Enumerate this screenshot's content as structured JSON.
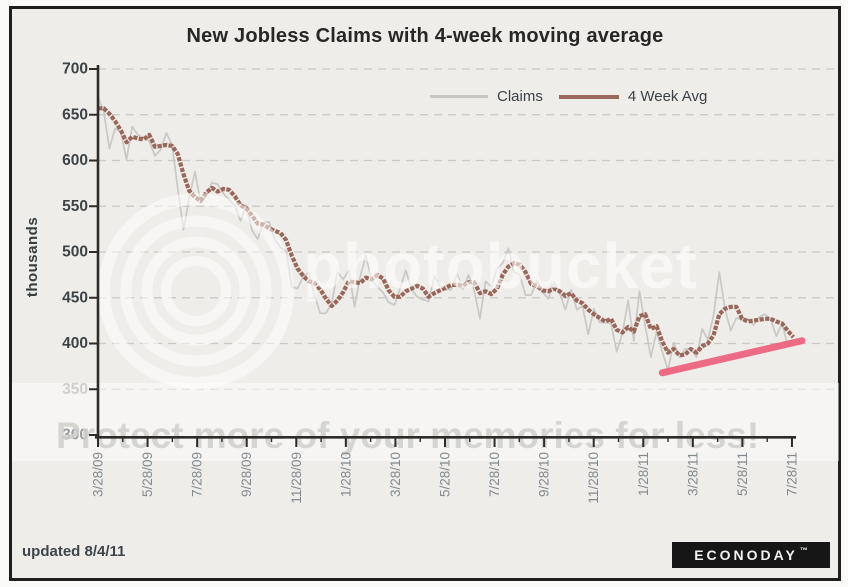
{
  "title": "New Jobless Claims with 4-week moving average",
  "y_axis_label": "thousands",
  "legend": {
    "items": [
      {
        "label": "Claims",
        "color": "#c7c6c4"
      },
      {
        "label": "4 Week Avg",
        "color": "#9a685a"
      }
    ]
  },
  "footer": {
    "updated": "updated 8/4/11",
    "logo_text": "ECONODAY",
    "logo_tm": "™"
  },
  "watermark": {
    "brand": "photobucket",
    "promo": "Protect more of your memories for less!"
  },
  "chart_data": {
    "type": "line",
    "title": "New Jobless Claims with 4-week moving average",
    "xlabel": "",
    "ylabel": "thousands",
    "ylim": [
      300,
      700
    ],
    "y_ticks": [
      700,
      650,
      600,
      550,
      500,
      450,
      400,
      350,
      300
    ],
    "grid": "dashed-horizontal",
    "legend_position": "top-right",
    "x_tick_labels": [
      "3/28/09",
      "5/28/09",
      "7/28/09",
      "9/28/09",
      "11/28/09",
      "1/28/10",
      "3/28/10",
      "5/28/10",
      "7/28/10",
      "9/28/10",
      "11/28/10",
      "1/28/11",
      "3/28/11",
      "5/28/11",
      "7/28/11"
    ],
    "dates": [
      "3/28/09",
      "4/4/09",
      "4/11/09",
      "4/18/09",
      "4/25/09",
      "5/2/09",
      "5/9/09",
      "5/16/09",
      "5/23/09",
      "5/30/09",
      "6/6/09",
      "6/13/09",
      "6/20/09",
      "6/27/09",
      "7/4/09",
      "7/11/09",
      "7/18/09",
      "7/25/09",
      "8/1/09",
      "8/8/09",
      "8/15/09",
      "8/22/09",
      "8/29/09",
      "9/5/09",
      "9/12/09",
      "9/19/09",
      "9/26/09",
      "10/3/09",
      "10/10/09",
      "10/17/09",
      "10/24/09",
      "10/31/09",
      "11/7/09",
      "11/14/09",
      "11/21/09",
      "11/28/09",
      "12/5/09",
      "12/12/09",
      "12/19/09",
      "12/26/09",
      "1/2/10",
      "1/9/10",
      "1/16/10",
      "1/23/10",
      "1/30/10",
      "2/6/10",
      "2/13/10",
      "2/20/10",
      "2/27/10",
      "3/6/10",
      "3/13/10",
      "3/20/10",
      "3/27/10",
      "4/3/10",
      "4/10/10",
      "4/17/10",
      "4/24/10",
      "5/1/10",
      "5/8/10",
      "5/15/10",
      "5/22/10",
      "5/29/10",
      "6/5/10",
      "6/12/10",
      "6/19/10",
      "6/26/10",
      "7/3/10",
      "7/10/10",
      "7/17/10",
      "7/24/10",
      "7/31/10",
      "8/7/10",
      "8/14/10",
      "8/21/10",
      "8/28/10",
      "9/4/10",
      "9/11/10",
      "9/18/10",
      "9/25/10",
      "10/2/10",
      "10/9/10",
      "10/16/10",
      "10/23/10",
      "10/30/10",
      "11/6/10",
      "11/13/10",
      "11/20/10",
      "11/27/10",
      "12/4/10",
      "12/11/10",
      "12/18/10",
      "12/25/10",
      "1/1/11",
      "1/8/11",
      "1/15/11",
      "1/22/11",
      "1/29/11",
      "2/5/11",
      "2/12/11",
      "2/19/11",
      "2/26/11",
      "3/5/11",
      "3/12/11",
      "3/19/11",
      "3/26/11",
      "4/2/11",
      "4/9/11",
      "4/16/11",
      "4/23/11",
      "4/30/11",
      "5/7/11",
      "5/14/11",
      "5/21/11",
      "5/28/11",
      "6/4/11",
      "6/11/11",
      "6/18/11",
      "6/25/11",
      "7/2/11",
      "7/9/11",
      "7/16/11",
      "7/23/11",
      "7/30/11"
    ],
    "series": [
      {
        "name": "Claims",
        "color": "#c7c6c4",
        "values": [
          669,
          654,
          613,
          635,
          631,
          601,
          637,
          628,
          625,
          621,
          605,
          612,
          630,
          617,
          569,
          524,
          559,
          588,
          554,
          561,
          576,
          574,
          564,
          557,
          551,
          534,
          551,
          524,
          514,
          532,
          533,
          514,
          505,
          501,
          462,
          460,
          473,
          478,
          452,
          433,
          433,
          444,
          478,
          470,
          480,
          440,
          473,
          496,
          469,
          462,
          456,
          445,
          442,
          460,
          480,
          459,
          451,
          448,
          446,
          474,
          463,
          459,
          459,
          476,
          459,
          475,
          458,
          427,
          468,
          462,
          482,
          488,
          504,
          478,
          475,
          453,
          453,
          469,
          456,
          449,
          467,
          455,
          437,
          459,
          437,
          441,
          410,
          438,
          423,
          423,
          422,
          391,
          411,
          447,
          403,
          457,
          419,
          385,
          413,
          391,
          371,
          401,
          385,
          394,
          394,
          385,
          416,
          404,
          431,
          478,
          438,
          414,
          428,
          426,
          427,
          420,
          429,
          432,
          427,
          408,
          422,
          398,
          400
        ]
      },
      {
        "name": "4 Week Avg",
        "color": "#9a685a",
        "values": [
          657,
          657,
          651,
          643,
          633,
          620,
          626,
          624,
          623,
          628,
          615,
          616,
          617,
          616,
          607,
          585,
          567,
          560,
          556,
          565,
          570,
          566,
          569,
          568,
          561,
          551,
          548,
          540,
          531,
          530,
          526,
          523,
          521,
          513,
          496,
          482,
          474,
          468,
          466,
          459,
          449,
          441,
          447,
          456,
          468,
          467,
          466,
          472,
          470,
          475,
          471,
          458,
          451,
          451,
          457,
          460,
          463,
          460,
          451,
          455,
          458,
          461,
          464,
          464,
          463,
          467,
          467,
          455,
          457,
          454,
          460,
          475,
          484,
          488,
          486,
          478,
          465,
          463,
          458,
          457,
          460,
          457,
          452,
          455,
          447,
          444,
          437,
          432,
          428,
          424,
          427,
          415,
          412,
          418,
          413,
          430,
          432,
          416,
          419,
          402,
          390,
          394,
          387,
          388,
          394,
          390,
          397,
          400,
          409,
          432,
          438,
          440,
          440,
          427,
          424,
          425,
          426,
          427,
          427,
          424,
          422,
          414,
          407
        ]
      }
    ],
    "trendline": {
      "name": "uptrend-marker",
      "color": "#ee5e7b",
      "from_week_index": 99,
      "from_value": 368,
      "to_week_index": 123.5,
      "to_value": 403
    }
  }
}
